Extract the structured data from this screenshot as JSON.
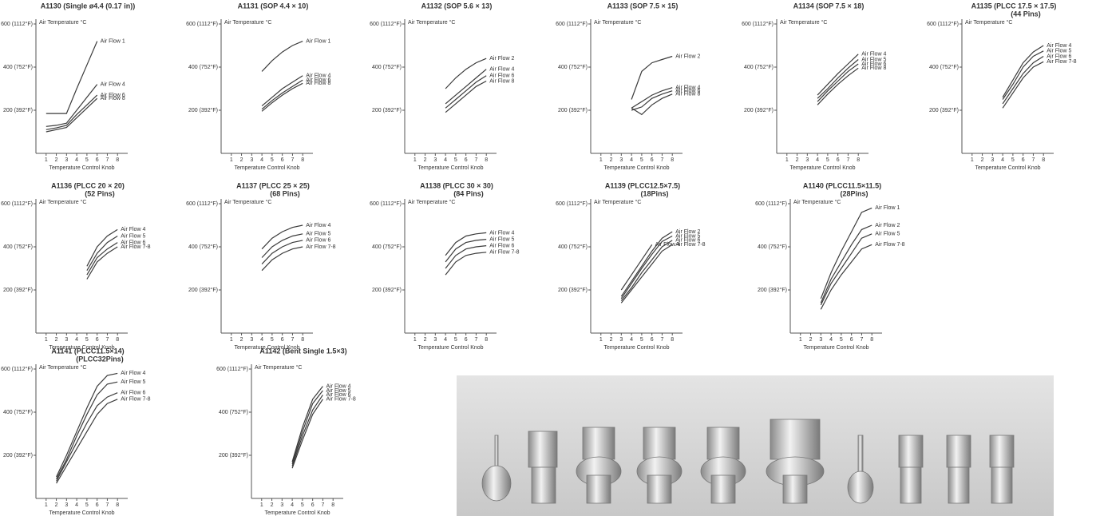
{
  "chart_data": [
    {
      "type": "line",
      "title": "A1130 (Single ø4.4 (0.17 in))",
      "y_label": "Air Temperature °C",
      "x_label": "Temperature Control Knob",
      "color": "#3a3a3a",
      "grid": false,
      "x": [
        1,
        2,
        3,
        4,
        5,
        6
      ],
      "xlim": [
        0,
        9
      ],
      "xticks": [
        1,
        2,
        3,
        4,
        5,
        6,
        7,
        8
      ],
      "ylim": [
        0,
        600
      ],
      "yticks": [
        {
          "value": 200,
          "label": "200 (392°F)"
        },
        {
          "value": 400,
          "label": "400 (752°F)"
        },
        {
          "value": 600,
          "label": "600 (1112°F)"
        }
      ],
      "series": [
        {
          "name": "Air Flow 1",
          "values": [
            185,
            185,
            185,
            300,
            410,
            520
          ]
        },
        {
          "name": "Air Flow 4",
          "values": [
            125,
            130,
            140,
            200,
            260,
            320
          ]
        },
        {
          "name": "Air Flow 6",
          "values": [
            110,
            118,
            130,
            180,
            225,
            270
          ]
        },
        {
          "name": "Air Flow 8",
          "values": [
            100,
            110,
            120,
            165,
            210,
            255
          ]
        }
      ]
    },
    {
      "type": "line",
      "title": "A1131 (SOP 4.4 × 10)",
      "y_label": "Air Temperature °C",
      "x_label": "Temperature Control Knob",
      "color": "#3a3a3a",
      "grid": false,
      "x": [
        4,
        5,
        6,
        7,
        8
      ],
      "xlim": [
        0,
        9
      ],
      "xticks": [
        1,
        2,
        3,
        4,
        5,
        6,
        7,
        8
      ],
      "ylim": [
        0,
        600
      ],
      "yticks": [
        {
          "value": 200,
          "label": "200 (392°F)"
        },
        {
          "value": 400,
          "label": "400 (752°F)"
        },
        {
          "value": 600,
          "label": "600 (1112°F)"
        }
      ],
      "series": [
        {
          "name": "Air Flow 1",
          "values": [
            380,
            430,
            470,
            500,
            520
          ]
        },
        {
          "name": "Air Flow 4",
          "values": [
            220,
            260,
            300,
            330,
            360
          ]
        },
        {
          "name": "Air Flow 6",
          "values": [
            205,
            245,
            280,
            310,
            340
          ]
        },
        {
          "name": "Air Flow 8",
          "values": [
            195,
            235,
            270,
            300,
            325
          ]
        }
      ]
    },
    {
      "type": "line",
      "title": "A1132 (SOP 5.6 × 13)",
      "y_label": "Air Temperature °C",
      "x_label": "Temperature Control Knob",
      "color": "#3a3a3a",
      "grid": false,
      "x": [
        4,
        5,
        6,
        7,
        8
      ],
      "xlim": [
        0,
        9
      ],
      "xticks": [
        1,
        2,
        3,
        4,
        5,
        6,
        7,
        8
      ],
      "ylim": [
        0,
        600
      ],
      "yticks": [
        {
          "value": 200,
          "label": "200 (392°F)"
        },
        {
          "value": 400,
          "label": "400 (752°F)"
        },
        {
          "value": 600,
          "label": "600 (1112°F)"
        }
      ],
      "series": [
        {
          "name": "Air Flow 2",
          "values": [
            300,
            350,
            390,
            420,
            440
          ]
        },
        {
          "name": "Air Flow 4",
          "values": [
            230,
            270,
            310,
            350,
            390
          ]
        },
        {
          "name": "Air Flow 6",
          "values": [
            210,
            250,
            290,
            330,
            360
          ]
        },
        {
          "name": "Air Flow 8",
          "values": [
            190,
            230,
            270,
            310,
            335
          ]
        }
      ]
    },
    {
      "type": "line",
      "title": "A1133 (SOP 7.5 × 15)",
      "y_label": "Air Temperature °C",
      "x_label": "Temperature Control Knob",
      "color": "#3a3a3a",
      "grid": false,
      "x": [
        4,
        5,
        6,
        7,
        8
      ],
      "xlim": [
        0,
        9
      ],
      "xticks": [
        1,
        2,
        3,
        4,
        5,
        6,
        7,
        8
      ],
      "ylim": [
        0,
        600
      ],
      "yticks": [
        {
          "value": 200,
          "label": "200 (392°F)"
        },
        {
          "value": 400,
          "label": "400 (752°F)"
        },
        {
          "value": 600,
          "label": "600 (1112°F)"
        }
      ],
      "series": [
        {
          "name": "Air Flow 2",
          "values": [
            250,
            380,
            420,
            435,
            450
          ]
        },
        {
          "name": "Air Flow 4",
          "values": [
            210,
            240,
            270,
            290,
            305
          ]
        },
        {
          "name": "Air Flow 6",
          "values": [
            200,
            215,
            255,
            275,
            290
          ]
        },
        {
          "name": "Air Flow 8",
          "values": [
            210,
            180,
            225,
            255,
            275
          ]
        }
      ]
    },
    {
      "type": "line",
      "title": "A1134 (SOP 7.5 × 18)",
      "y_label": "Air Temperature °C",
      "x_label": "Temperature Control Knob",
      "color": "#3a3a3a",
      "grid": false,
      "x": [
        4,
        5,
        6,
        7,
        8
      ],
      "xlim": [
        0,
        9
      ],
      "xticks": [
        1,
        2,
        3,
        4,
        5,
        6,
        7,
        8
      ],
      "ylim": [
        0,
        600
      ],
      "yticks": [
        {
          "value": 200,
          "label": "200 (392°F)"
        },
        {
          "value": 400,
          "label": "400 (752°F)"
        },
        {
          "value": 600,
          "label": "600 (1112°F)"
        }
      ],
      "series": [
        {
          "name": "Air Flow 4",
          "values": [
            270,
            320,
            370,
            415,
            460
          ]
        },
        {
          "name": "Air Flow 5",
          "values": [
            255,
            300,
            350,
            395,
            435
          ]
        },
        {
          "name": "Air Flow 6",
          "values": [
            240,
            290,
            335,
            380,
            415
          ]
        },
        {
          "name": "Air Flow 8",
          "values": [
            225,
            275,
            320,
            360,
            395
          ]
        }
      ]
    },
    {
      "type": "line",
      "title": "A1135 (PLCC 17.5 × 17.5)",
      "subtitle": "(44 Pins)",
      "y_label": "Air Temperature °C",
      "x_label": "Temperature Control Knob",
      "color": "#3a3a3a",
      "grid": false,
      "x": [
        4,
        5,
        6,
        7,
        8
      ],
      "xlim": [
        0,
        9
      ],
      "xticks": [
        1,
        2,
        3,
        4,
        5,
        6,
        7,
        8
      ],
      "ylim": [
        0,
        600
      ],
      "yticks": [
        {
          "value": 200,
          "label": "200 (392°F)"
        },
        {
          "value": 400,
          "label": "400 (752°F)"
        },
        {
          "value": 600,
          "label": "600 (1112°F)"
        }
      ],
      "series": [
        {
          "name": "Air Flow 4",
          "values": [
            260,
            340,
            420,
            470,
            500
          ]
        },
        {
          "name": "Air Flow 5",
          "values": [
            250,
            320,
            400,
            450,
            475
          ]
        },
        {
          "name": "Air Flow 6",
          "values": [
            230,
            300,
            370,
            420,
            450
          ]
        },
        {
          "name": "Air Flow 7-8",
          "values": [
            210,
            280,
            350,
            400,
            425
          ]
        }
      ]
    },
    {
      "type": "line",
      "title": "A1136 (PLCC 20 × 20)",
      "subtitle": "(52 Pins)",
      "y_label": "Air Temperature °C",
      "x_label": "Temperature Control Knob",
      "color": "#3a3a3a",
      "grid": false,
      "x": [
        5,
        6,
        7,
        8
      ],
      "xlim": [
        0,
        9
      ],
      "xticks": [
        1,
        2,
        3,
        4,
        5,
        6,
        7,
        8
      ],
      "ylim": [
        0,
        600
      ],
      "yticks": [
        {
          "value": 200,
          "label": "200 (392°F)"
        },
        {
          "value": 400,
          "label": "400 (752°F)"
        },
        {
          "value": 600,
          "label": "600 (1112°F)"
        }
      ],
      "series": [
        {
          "name": "Air Flow 4",
          "values": [
            310,
            400,
            450,
            480
          ]
        },
        {
          "name": "Air Flow 5",
          "values": [
            290,
            370,
            420,
            450
          ]
        },
        {
          "name": "Air Flow 6",
          "values": [
            270,
            350,
            390,
            420
          ]
        },
        {
          "name": "Air Flow 7-8",
          "values": [
            250,
            330,
            370,
            400
          ]
        }
      ]
    },
    {
      "type": "line",
      "title": "A1137 (PLCC 25 × 25)",
      "subtitle": "(68 Pins)",
      "y_label": "Air Temperature °C",
      "x_label": "Temperature Control Knob",
      "color": "#3a3a3a",
      "grid": false,
      "x": [
        4,
        5,
        6,
        7,
        8
      ],
      "xlim": [
        0,
        9
      ],
      "xticks": [
        1,
        2,
        3,
        4,
        5,
        6,
        7,
        8
      ],
      "ylim": [
        0,
        600
      ],
      "yticks": [
        {
          "value": 200,
          "label": "200 (392°F)"
        },
        {
          "value": 400,
          "label": "400 (752°F)"
        },
        {
          "value": 600,
          "label": "600 (1112°F)"
        }
      ],
      "series": [
        {
          "name": "Air Flow 4",
          "values": [
            390,
            440,
            470,
            490,
            500
          ]
        },
        {
          "name": "Air Flow 5",
          "values": [
            350,
            400,
            430,
            450,
            460
          ]
        },
        {
          "name": "Air Flow 6",
          "values": [
            320,
            370,
            400,
            420,
            430
          ]
        },
        {
          "name": "Air Flow 7-8",
          "values": [
            290,
            340,
            370,
            390,
            400
          ]
        }
      ]
    },
    {
      "type": "line",
      "title": "A1138 (PLCC 30 × 30)",
      "subtitle": "(84 Pins)",
      "y_label": "Air Temperature °C",
      "x_label": "Temperature Control Knob",
      "color": "#3a3a3a",
      "grid": false,
      "x": [
        4,
        5,
        6,
        7,
        8
      ],
      "xlim": [
        0,
        9
      ],
      "xticks": [
        1,
        2,
        3,
        4,
        5,
        6,
        7,
        8
      ],
      "ylim": [
        0,
        600
      ],
      "yticks": [
        {
          "value": 200,
          "label": "200 (392°F)"
        },
        {
          "value": 400,
          "label": "400 (752°F)"
        },
        {
          "value": 600,
          "label": "600 (1112°F)"
        }
      ],
      "series": [
        {
          "name": "Air Flow 4",
          "values": [
            360,
            420,
            450,
            460,
            465
          ]
        },
        {
          "name": "Air Flow 5",
          "values": [
            330,
            390,
            420,
            430,
            435
          ]
        },
        {
          "name": "Air Flow 6",
          "values": [
            300,
            360,
            390,
            400,
            405
          ]
        },
        {
          "name": "Air Flow 7-8",
          "values": [
            270,
            330,
            360,
            370,
            375
          ]
        }
      ]
    },
    {
      "type": "line",
      "title": "A1139 (PLCC12.5×7.5)",
      "subtitle": "(18Pins)",
      "y_label": "Air Temperature °C",
      "x_label": "Temperature Control Knob",
      "color": "#3a3a3a",
      "grid": false,
      "x": [
        3,
        4,
        5,
        6,
        7,
        8
      ],
      "xlim": [
        0,
        9
      ],
      "xticks": [
        1,
        2,
        3,
        4,
        5,
        6,
        7,
        8
      ],
      "ylim": [
        0,
        600
      ],
      "yticks": [
        {
          "value": 200,
          "label": "200 (392°F)"
        },
        {
          "value": 400,
          "label": "400 (752°F)"
        },
        {
          "value": 600,
          "label": "600 (1112°F)"
        }
      ],
      "series": [
        {
          "name": "Air Flow 4",
          "values": [
            200,
            270,
            340,
            410,
            null,
            null
          ]
        },
        {
          "name": "Air Flow 2",
          "values": [
            170,
            240,
            310,
            380,
            440,
            470
          ]
        },
        {
          "name": "Air Flow 5",
          "values": [
            160,
            230,
            300,
            365,
            425,
            450
          ]
        },
        {
          "name": "Air Flow 6",
          "values": [
            150,
            210,
            280,
            340,
            400,
            430
          ]
        },
        {
          "name": "Air Flow 7-8",
          "values": [
            140,
            200,
            260,
            320,
            380,
            410
          ]
        }
      ]
    },
    {
      "type": "line",
      "title": "A1140 (PLCC11.5×11.5)",
      "subtitle": "(28Pins)",
      "y_label": "Air Temperature °C",
      "x_label": "Temperature Control Knob",
      "color": "#3a3a3a",
      "grid": false,
      "x": [
        3,
        4,
        5,
        6,
        7,
        8
      ],
      "xlim": [
        0,
        9
      ],
      "xticks": [
        1,
        2,
        3,
        4,
        5,
        6,
        7,
        8
      ],
      "ylim": [
        0,
        600
      ],
      "yticks": [
        {
          "value": 200,
          "label": "200 (392°F)"
        },
        {
          "value": 400,
          "label": "400 (752°F)"
        },
        {
          "value": 600,
          "label": "600 (1112°F)"
        }
      ],
      "series": [
        {
          "name": "Air Flow 1",
          "values": [
            160,
            280,
            380,
            470,
            560,
            580
          ]
        },
        {
          "name": "Air Flow 2",
          "values": [
            140,
            250,
            330,
            410,
            480,
            500
          ]
        },
        {
          "name": "Air Flow 5",
          "values": [
            130,
            230,
            300,
            370,
            440,
            460
          ]
        },
        {
          "name": "Air Flow 7-8",
          "values": [
            110,
            200,
            270,
            330,
            390,
            410
          ]
        }
      ]
    },
    {
      "type": "line",
      "title": "A1141 (PLCC11.5×14)",
      "subtitle": "(PLCC32Pins)",
      "y_label": "Air Temperature °C",
      "x_label": "Temperature Control Knob",
      "color": "#3a3a3a",
      "grid": false,
      "x": [
        2,
        3,
        4,
        5,
        6,
        7,
        8
      ],
      "xlim": [
        0,
        9
      ],
      "xticks": [
        1,
        2,
        3,
        4,
        5,
        6,
        7,
        8
      ],
      "ylim": [
        0,
        600
      ],
      "yticks": [
        {
          "value": 200,
          "label": "200 (392°F)"
        },
        {
          "value": 400,
          "label": "400 (752°F)"
        },
        {
          "value": 600,
          "label": "600 (1112°F)"
        }
      ],
      "series": [
        {
          "name": "Air Flow 4",
          "values": [
            100,
            200,
            310,
            420,
            520,
            570,
            580
          ]
        },
        {
          "name": "Air Flow 5",
          "values": [
            90,
            180,
            290,
            390,
            480,
            530,
            540
          ]
        },
        {
          "name": "Air Flow 6",
          "values": [
            80,
            170,
            260,
            350,
            430,
            470,
            490
          ]
        },
        {
          "name": "Air Flow 7-8",
          "values": [
            70,
            150,
            230,
            310,
            390,
            440,
            460
          ]
        }
      ]
    },
    {
      "type": "line",
      "title": "A1142 (Bent Single 1.5×3)",
      "y_label": "Air Temperature °C",
      "x_label": "Temperature Control Knob",
      "color": "#3a3a3a",
      "grid": false,
      "x": [
        4,
        5,
        6,
        7
      ],
      "xlim": [
        0,
        9
      ],
      "xticks": [
        1,
        2,
        3,
        4,
        5,
        6,
        7,
        8
      ],
      "ylim": [
        0,
        600
      ],
      "yticks": [
        {
          "value": 200,
          "label": "200 (392°F)"
        },
        {
          "value": 400,
          "label": "400 (752°F)"
        },
        {
          "value": 600,
          "label": "600 (1112°F)"
        }
      ],
      "series": [
        {
          "name": "Air Flow 4",
          "values": [
            170,
            330,
            460,
            520
          ]
        },
        {
          "name": "Air Flow 5",
          "values": [
            160,
            310,
            440,
            500
          ]
        },
        {
          "name": "Air Flow 6",
          "values": [
            150,
            290,
            410,
            480
          ]
        },
        {
          "name": "Air Flow 7-8",
          "values": [
            140,
            270,
            390,
            460
          ]
        }
      ]
    }
  ]
}
